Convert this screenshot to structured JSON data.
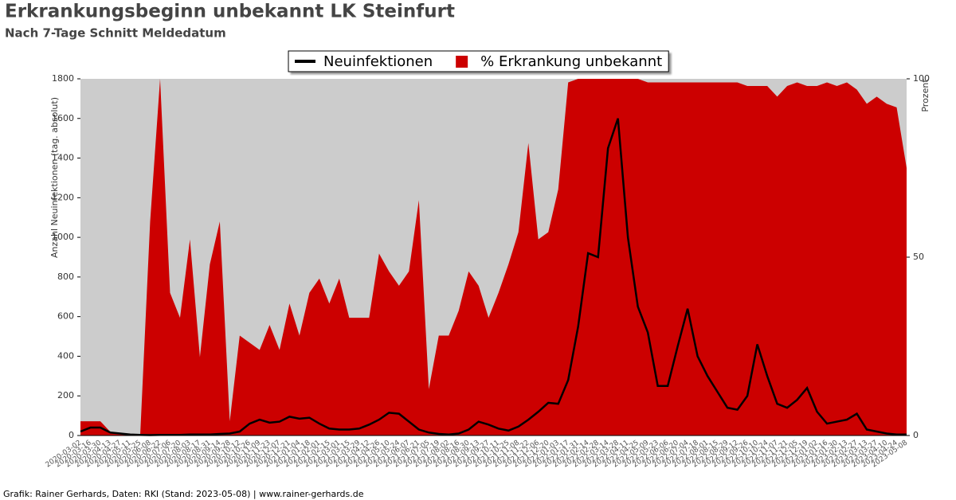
{
  "chart_data": {
    "type": "line-area",
    "title": "Erkrankungsbeginn unbekannt LK Steinfurt",
    "subtitle": "Nach 7-Tage Schnitt Meldedatum",
    "source": "Grafik: Rainer Gerhards, Daten: RKI (Stand: 2023-05-08) | www.rainer-gerhards.de",
    "y_label": "Anzahl Neuinfektionen (tag. absolut)",
    "y2_label": "Prozent",
    "categories": [
      "2020-03-02",
      "2020-03-16",
      "2020-03-30",
      "2020-04-13",
      "2020-04-27",
      "2020-05-11",
      "2020-05-25",
      "2020-06-08",
      "2020-06-22",
      "2020-07-06",
      "2020-07-20",
      "2020-08-03",
      "2020-08-17",
      "2020-08-31",
      "2020-09-14",
      "2020-09-28",
      "2020-10-12",
      "2020-10-26",
      "2020-11-09",
      "2020-11-23",
      "2020-12-07",
      "2020-12-21",
      "2021-01-04",
      "2021-01-18",
      "2021-02-01",
      "2021-02-15",
      "2021-03-01",
      "2021-03-15",
      "2021-03-29",
      "2021-04-12",
      "2021-04-26",
      "2021-05-10",
      "2021-05-24",
      "2021-06-07",
      "2021-06-21",
      "2021-07-05",
      "2021-07-19",
      "2021-08-02",
      "2021-08-16",
      "2021-08-30",
      "2021-09-13",
      "2021-09-27",
      "2021-10-11",
      "2021-10-25",
      "2021-11-08",
      "2021-11-22",
      "2021-12-06",
      "2021-12-20",
      "2022-01-03",
      "2022-01-17",
      "2022-01-31",
      "2022-02-14",
      "2022-02-28",
      "2022-03-14",
      "2022-03-28",
      "2022-04-11",
      "2022-04-25",
      "2022-05-09",
      "2022-05-23",
      "2022-06-06",
      "2022-06-20",
      "2022-07-04",
      "2022-07-18",
      "2022-08-01",
      "2022-08-15",
      "2022-08-29",
      "2022-09-12",
      "2022-09-26",
      "2022-10-10",
      "2022-10-24",
      "2022-11-07",
      "2022-11-21",
      "2022-12-05",
      "2022-12-19",
      "2023-01-02",
      "2023-01-16",
      "2023-01-30",
      "2023-02-13",
      "2023-02-27",
      "2023-03-13",
      "2023-03-27",
      "2023-04-10",
      "2023-04-24",
      "2023-05-08"
    ],
    "series": [
      {
        "name": "% Erkrankung unbekannt",
        "color": "#cc0000",
        "axis": "y2",
        "kind": "area",
        "values": [
          4,
          4,
          4,
          1,
          0.5,
          0,
          0,
          60,
          100,
          40,
          33,
          55,
          22,
          48,
          60,
          4,
          28,
          26,
          24,
          31,
          24,
          37,
          28,
          40,
          44,
          37,
          44,
          33,
          33,
          33,
          51,
          46,
          42,
          46,
          66,
          13,
          28,
          28,
          35,
          46,
          42,
          33,
          40,
          48,
          57,
          82,
          55,
          57,
          69,
          99,
          100,
          100,
          100,
          100,
          100,
          100,
          100,
          99,
          99,
          99,
          99,
          99,
          99,
          99,
          99,
          99,
          99,
          98,
          98,
          98,
          95,
          98,
          99,
          98,
          98,
          99,
          98,
          99,
          97,
          93,
          95,
          93,
          92,
          75
        ]
      },
      {
        "name": "Neuinfektionen",
        "color": "#000000",
        "axis": "y",
        "kind": "line",
        "values": [
          20,
          40,
          40,
          15,
          10,
          5,
          3,
          2,
          3,
          3,
          3,
          5,
          5,
          5,
          8,
          10,
          20,
          60,
          80,
          65,
          70,
          95,
          85,
          90,
          60,
          35,
          30,
          30,
          35,
          55,
          80,
          115,
          110,
          70,
          30,
          15,
          8,
          5,
          10,
          30,
          70,
          55,
          35,
          25,
          45,
          80,
          120,
          165,
          160,
          280,
          550,
          920,
          900,
          1450,
          1600,
          1000,
          650,
          520,
          250,
          250,
          450,
          640,
          400,
          300,
          220,
          140,
          130,
          200,
          460,
          300,
          160,
          140,
          180,
          240,
          120,
          60,
          70,
          80,
          110,
          30,
          20,
          10,
          5,
          5
        ]
      }
    ],
    "ylim": [
      0,
      1800
    ],
    "yticks": [
      0,
      200,
      400,
      600,
      800,
      1000,
      1200,
      1400,
      1600,
      1800
    ],
    "y2lim": [
      0,
      100
    ],
    "y2ticks": [
      0,
      50,
      100
    ],
    "background": "#cccccc"
  }
}
